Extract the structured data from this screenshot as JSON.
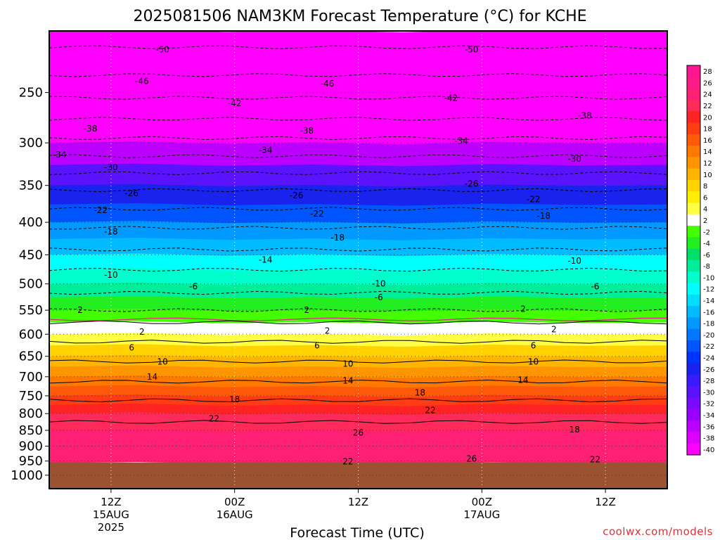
{
  "chart_data": {
    "type": "heatmap",
    "title": "2025081506 NAM3KM Forecast Temperature (°C) for KCHE",
    "xlabel": "Forecast Time (UTC)",
    "ylabel": "",
    "credit": "coolwx.com/models",
    "y_axis": {
      "scale": "log",
      "inverted": true,
      "range": [
        200,
        1050
      ],
      "ticks": [
        250,
        300,
        350,
        400,
        450,
        500,
        550,
        600,
        650,
        700,
        750,
        800,
        850,
        900,
        950,
        1000
      ]
    },
    "x_axis": {
      "range": [
        "2025-08-15 06Z",
        "2025-08-17 18Z"
      ],
      "ticks": [
        {
          "time": "2025-08-15 12Z",
          "lines": [
            "12Z",
            "15AUG",
            "2025"
          ]
        },
        {
          "time": "2025-08-16 00Z",
          "lines": [
            "00Z",
            "16AUG"
          ]
        },
        {
          "time": "2025-08-16 12Z",
          "lines": [
            "12Z"
          ]
        },
        {
          "time": "2025-08-17 00Z",
          "lines": [
            "00Z",
            "17AUG"
          ]
        },
        {
          "time": "2025-08-17 12Z",
          "lines": [
            "12Z"
          ]
        }
      ]
    },
    "grid": true,
    "below_ground_color": "#9a5230",
    "surface_pressure": 955,
    "colorbar": {
      "levels": [
        28,
        26,
        24,
        22,
        20,
        18,
        16,
        14,
        12,
        10,
        8,
        6,
        4,
        2,
        -2,
        -4,
        -6,
        -8,
        -10,
        -12,
        -14,
        -16,
        -18,
        -20,
        -22,
        -24,
        -26,
        -28,
        -30,
        -32,
        -34,
        -36,
        -38,
        -40
      ],
      "colors": [
        "#ff1493",
        "#ff1a8a",
        "#ff1f75",
        "#ff2a5a",
        "#ff2323",
        "#ff3c14",
        "#ff5a0a",
        "#ff7800",
        "#ff9600",
        "#ffb400",
        "#ffd200",
        "#ffee00",
        "#ffff44",
        "#ffffff",
        "#44ff00",
        "#22ee22",
        "#00e066",
        "#00ee99",
        "#00ffcc",
        "#00ffff",
        "#00ddff",
        "#00bbff",
        "#0099ff",
        "#0077ff",
        "#0055ff",
        "#0033ff",
        "#1a22ee",
        "#3a1aff",
        "#5a12ff",
        "#7a0aff",
        "#9a00ff",
        "#bb00ff",
        "#dd00ff",
        "#ff00ff"
      ]
    },
    "temperature_profile": [
      {
        "pressure": 200,
        "temp": -56
      },
      {
        "pressure": 225,
        "temp": -52
      },
      {
        "pressure": 250,
        "temp": -47
      },
      {
        "pressure": 275,
        "temp": -42
      },
      {
        "pressure": 300,
        "temp": -37
      },
      {
        "pressure": 325,
        "temp": -32
      },
      {
        "pressure": 350,
        "temp": -27
      },
      {
        "pressure": 375,
        "temp": -23
      },
      {
        "pressure": 400,
        "temp": -19
      },
      {
        "pressure": 425,
        "temp": -16
      },
      {
        "pressure": 450,
        "temp": -13
      },
      {
        "pressure": 475,
        "temp": -10
      },
      {
        "pressure": 500,
        "temp": -8
      },
      {
        "pressure": 525,
        "temp": -5
      },
      {
        "pressure": 550,
        "temp": -2
      },
      {
        "pressure": 560,
        "temp": 0
      },
      {
        "pressure": 575,
        "temp": 2
      },
      {
        "pressure": 600,
        "temp": 4
      },
      {
        "pressure": 625,
        "temp": 7
      },
      {
        "pressure": 650,
        "temp": 9
      },
      {
        "pressure": 675,
        "temp": 11
      },
      {
        "pressure": 700,
        "temp": 13
      },
      {
        "pressure": 725,
        "temp": 15
      },
      {
        "pressure": 750,
        "temp": 17
      },
      {
        "pressure": 775,
        "temp": 19
      },
      {
        "pressure": 800,
        "temp": 21
      },
      {
        "pressure": 850,
        "temp": 23
      },
      {
        "pressure": 900,
        "temp": 25
      },
      {
        "pressure": 955,
        "temp": 25
      }
    ],
    "contour_labels": [
      {
        "value": "-50",
        "time": "2025-08-15 17Z",
        "pressure": 214
      },
      {
        "value": "-50",
        "time": "2025-08-16 23Z",
        "pressure": 214
      },
      {
        "value": "-46",
        "time": "2025-08-15 15Z",
        "pressure": 240
      },
      {
        "value": "-46",
        "time": "2025-08-16 09Z",
        "pressure": 242
      },
      {
        "value": "-42",
        "time": "2025-08-16 00Z",
        "pressure": 260
      },
      {
        "value": "-42",
        "time": "2025-08-16 21Z",
        "pressure": 255
      },
      {
        "value": "-38",
        "time": "2025-08-15 10Z",
        "pressure": 285
      },
      {
        "value": "-38",
        "time": "2025-08-16 07Z",
        "pressure": 287
      },
      {
        "value": "-38",
        "time": "2025-08-17 10Z",
        "pressure": 272
      },
      {
        "value": "-34",
        "time": "2025-08-15 07Z",
        "pressure": 313
      },
      {
        "value": "-34",
        "time": "2025-08-16 03Z",
        "pressure": 308
      },
      {
        "value": "-34",
        "time": "2025-08-16 22Z",
        "pressure": 298
      },
      {
        "value": "-30",
        "time": "2025-08-15 12Z",
        "pressure": 328
      },
      {
        "value": "-30",
        "time": "2025-08-17 09Z",
        "pressure": 318
      },
      {
        "value": "-26",
        "time": "2025-08-15 14Z",
        "pressure": 360
      },
      {
        "value": "-26",
        "time": "2025-08-16 06Z",
        "pressure": 363
      },
      {
        "value": "-26",
        "time": "2025-08-16 23Z",
        "pressure": 348
      },
      {
        "value": "-22",
        "time": "2025-08-15 11Z",
        "pressure": 383
      },
      {
        "value": "-22",
        "time": "2025-08-16 08Z",
        "pressure": 388
      },
      {
        "value": "-22",
        "time": "2025-08-17 05Z",
        "pressure": 368
      },
      {
        "value": "-18",
        "time": "2025-08-15 12Z",
        "pressure": 414
      },
      {
        "value": "-18",
        "time": "2025-08-16 10Z",
        "pressure": 423
      },
      {
        "value": "-18",
        "time": "2025-08-17 06Z",
        "pressure": 391
      },
      {
        "value": "-14",
        "time": "2025-08-16 03Z",
        "pressure": 458
      },
      {
        "value": "-10",
        "time": "2025-08-15 12Z",
        "pressure": 484
      },
      {
        "value": "-10",
        "time": "2025-08-16 14Z",
        "pressure": 500
      },
      {
        "value": "-10",
        "time": "2025-08-17 09Z",
        "pressure": 460
      },
      {
        "value": "-6",
        "time": "2025-08-15 20Z",
        "pressure": 505
      },
      {
        "value": "-6",
        "time": "2025-08-16 14Z",
        "pressure": 525
      },
      {
        "value": "-6",
        "time": "2025-08-17 11Z",
        "pressure": 505
      },
      {
        "value": "2",
        "time": "2025-08-15 09Z",
        "pressure": 550
      },
      {
        "value": "2",
        "time": "2025-08-16 07Z",
        "pressure": 550
      },
      {
        "value": "2",
        "time": "2025-08-17 04Z",
        "pressure": 548
      },
      {
        "value": "2",
        "time": "2025-08-15 15Z",
        "pressure": 595
      },
      {
        "value": "2",
        "time": "2025-08-16 09Z",
        "pressure": 593
      },
      {
        "value": "2",
        "time": "2025-08-17 07Z",
        "pressure": 590
      },
      {
        "value": "6",
        "time": "2025-08-15 14Z",
        "pressure": 630
      },
      {
        "value": "6",
        "time": "2025-08-16 08Z",
        "pressure": 625
      },
      {
        "value": "6",
        "time": "2025-08-17 05Z",
        "pressure": 625
      },
      {
        "value": "10",
        "time": "2025-08-15 17Z",
        "pressure": 663
      },
      {
        "value": "10",
        "time": "2025-08-16 11Z",
        "pressure": 668
      },
      {
        "value": "10",
        "time": "2025-08-17 05Z",
        "pressure": 663
      },
      {
        "value": "14",
        "time": "2025-08-15 16Z",
        "pressure": 700
      },
      {
        "value": "14",
        "time": "2025-08-16 11Z",
        "pressure": 710
      },
      {
        "value": "14",
        "time": "2025-08-17 04Z",
        "pressure": 708
      },
      {
        "value": "18",
        "time": "2025-08-16 00Z",
        "pressure": 760
      },
      {
        "value": "18",
        "time": "2025-08-16 18Z",
        "pressure": 742
      },
      {
        "value": "18",
        "time": "2025-08-17 09Z",
        "pressure": 848
      },
      {
        "value": "22",
        "time": "2025-08-15 22Z",
        "pressure": 815
      },
      {
        "value": "22",
        "time": "2025-08-16 19Z",
        "pressure": 790
      },
      {
        "value": "22",
        "time": "2025-08-16 11Z",
        "pressure": 952
      },
      {
        "value": "22",
        "time": "2025-08-17 11Z",
        "pressure": 945
      },
      {
        "value": "26",
        "time": "2025-08-16 12Z",
        "pressure": 858
      },
      {
        "value": "26",
        "time": "2025-08-16 23Z",
        "pressure": 942
      }
    ]
  }
}
